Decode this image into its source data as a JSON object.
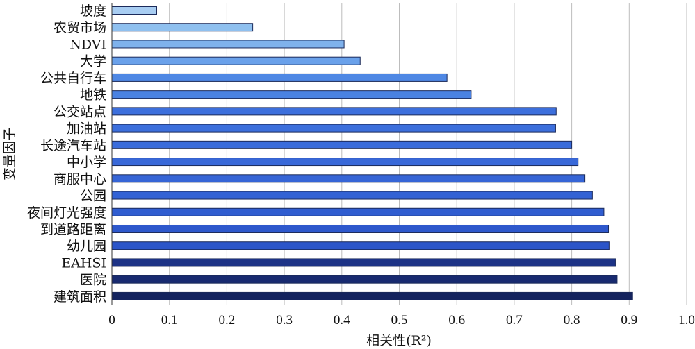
{
  "chart_data": {
    "type": "bar",
    "orientation": "horizontal",
    "categories": [
      "坡度",
      "农贸市场",
      "NDVI",
      "大学",
      "公共自行车",
      "地铁",
      "公交站点",
      "加油站",
      "长途汽车站",
      "中小学",
      "商服中心",
      "公园",
      "夜间灯光强度",
      "到道路距离",
      "幼儿园",
      "EAHSI",
      "医院",
      "建筑面积"
    ],
    "values": [
      0.078,
      0.245,
      0.404,
      0.432,
      0.583,
      0.625,
      0.773,
      0.772,
      0.8,
      0.811,
      0.823,
      0.836,
      0.856,
      0.864,
      0.865,
      0.876,
      0.879,
      0.906
    ],
    "bar_colors": [
      "#a8cdf2",
      "#8fc0ef",
      "#7fb2ec",
      "#6aa1ea",
      "#4f88e4",
      "#4a82e2",
      "#3c6fdc",
      "#3c6fdc",
      "#3a6cdb",
      "#3868d8",
      "#3665d6",
      "#3362d4",
      "#305dd0",
      "#2e58cc",
      "#2c55c9",
      "#1d3386",
      "#182a70",
      "#14235e"
    ],
    "xlim": [
      0,
      1.0
    ],
    "xticks": [
      "0",
      "0.1",
      "0.2",
      "0.3",
      "0.4",
      "0.5",
      "0.6",
      "0.7",
      "0.8",
      "0.9",
      "1.0"
    ],
    "xlabel": "相关性(R²)",
    "ylabel": "变量因子",
    "grid": true
  }
}
